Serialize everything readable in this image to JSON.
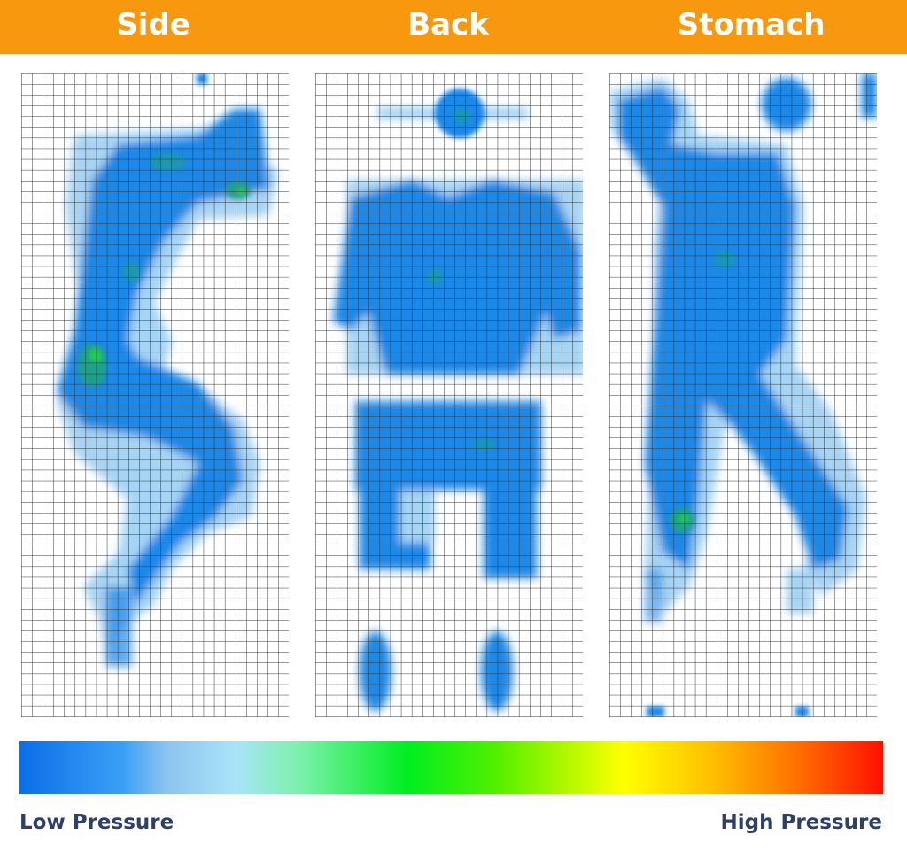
{
  "header": {
    "background_color": "#f7980f",
    "positions": [
      {
        "label": "Side"
      },
      {
        "label": "Back"
      },
      {
        "label": "Stomach"
      }
    ]
  },
  "legend": {
    "low_label": "Low Pressure",
    "high_label": "High Pressure",
    "gradient_colors": [
      "#0a6ee8",
      "#3aa0f5",
      "#a8e4f8",
      "#00ee20",
      "#ffff00",
      "#ff1000"
    ]
  },
  "colors": {
    "body_low": "#1e88e8",
    "body_faint": "#a6d4f5",
    "body_mid": "#1aa28a",
    "body_high": "#20d040",
    "grid_line": "#333333"
  }
}
